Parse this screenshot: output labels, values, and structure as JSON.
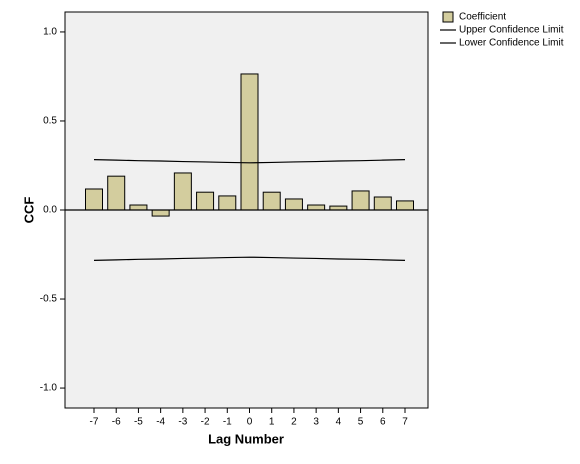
{
  "chart_data": {
    "type": "bar",
    "x_label": "Lag Number",
    "y_label": "CCF",
    "categories": [
      "-7",
      "-6",
      "-5",
      "-4",
      "-3",
      "-2",
      "-1",
      "0",
      "1",
      "2",
      "3",
      "4",
      "5",
      "6",
      "7"
    ],
    "series": [
      {
        "name": "Coefficient",
        "type": "bar",
        "color": "#d3cd9e",
        "values": [
          0.118,
          0.19,
          0.028,
          -0.034,
          0.208,
          0.1,
          0.079,
          0.764,
          0.1,
          0.062,
          0.028,
          0.022,
          0.107,
          0.073,
          0.051
        ]
      },
      {
        "name": "Upper Confidence Limit",
        "type": "line",
        "color": "#000000",
        "values": [
          0.283,
          0.28,
          0.277,
          0.275,
          0.272,
          0.27,
          0.267,
          0.265,
          0.267,
          0.27,
          0.272,
          0.275,
          0.277,
          0.28,
          0.283
        ]
      },
      {
        "name": "Lower Confidence Limit",
        "type": "line",
        "color": "#000000",
        "values": [
          -0.283,
          -0.28,
          -0.277,
          -0.275,
          -0.272,
          -0.27,
          -0.267,
          -0.265,
          -0.267,
          -0.27,
          -0.272,
          -0.275,
          -0.277,
          -0.28,
          -0.283
        ]
      }
    ],
    "ylim": [
      -1.112,
      1.112
    ],
    "yticks": [
      {
        "value": 1.0,
        "label": "1.0"
      },
      {
        "value": 0.5,
        "label": "0.5"
      },
      {
        "value": 0.0,
        "label": "0.0"
      },
      {
        "value": -0.5,
        "label": "-0.5"
      },
      {
        "value": -1.0,
        "label": "-1.0"
      }
    ],
    "legend": "right"
  }
}
